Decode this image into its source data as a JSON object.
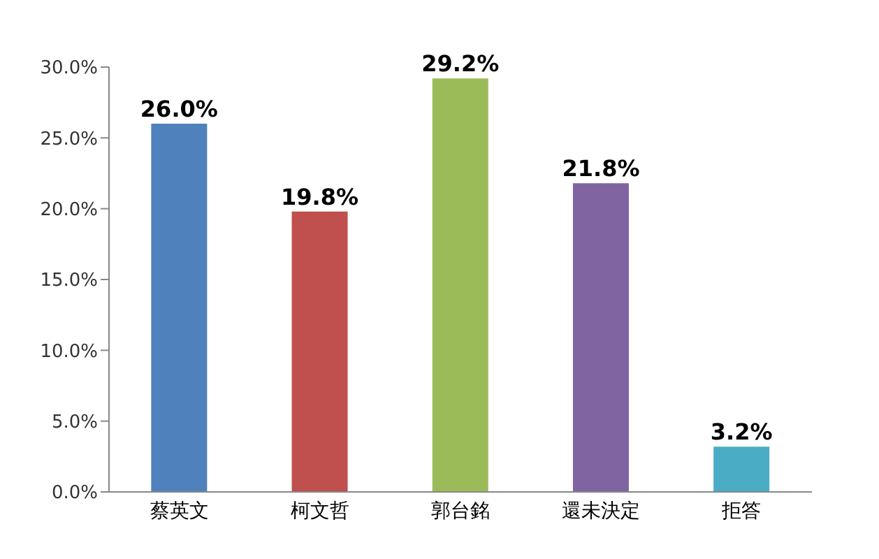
{
  "chart_data": {
    "type": "bar",
    "categories": [
      "蔡英文",
      "柯文哲",
      "郭台銘",
      "還未決定",
      "拒答"
    ],
    "values": [
      26.0,
      19.8,
      29.2,
      21.8,
      3.2
    ],
    "colors": [
      "#4f81bd",
      "#c0504d",
      "#9bbb59",
      "#8064a2",
      "#4bacc6"
    ],
    "value_labels": [
      "26.0%",
      "19.8%",
      "29.2%",
      "21.8%",
      "3.2%"
    ],
    "ylim": [
      0,
      30
    ],
    "yticks": [
      {
        "value": 0,
        "label": "0.0%"
      },
      {
        "value": 5,
        "label": "5.0%"
      },
      {
        "value": 10,
        "label": "10.0%"
      },
      {
        "value": 15,
        "label": "15.0%"
      },
      {
        "value": 20,
        "label": "20.0%"
      },
      {
        "value": 25,
        "label": "25.0%"
      },
      {
        "value": 30,
        "label": "30.0%"
      }
    ],
    "grid": false
  }
}
